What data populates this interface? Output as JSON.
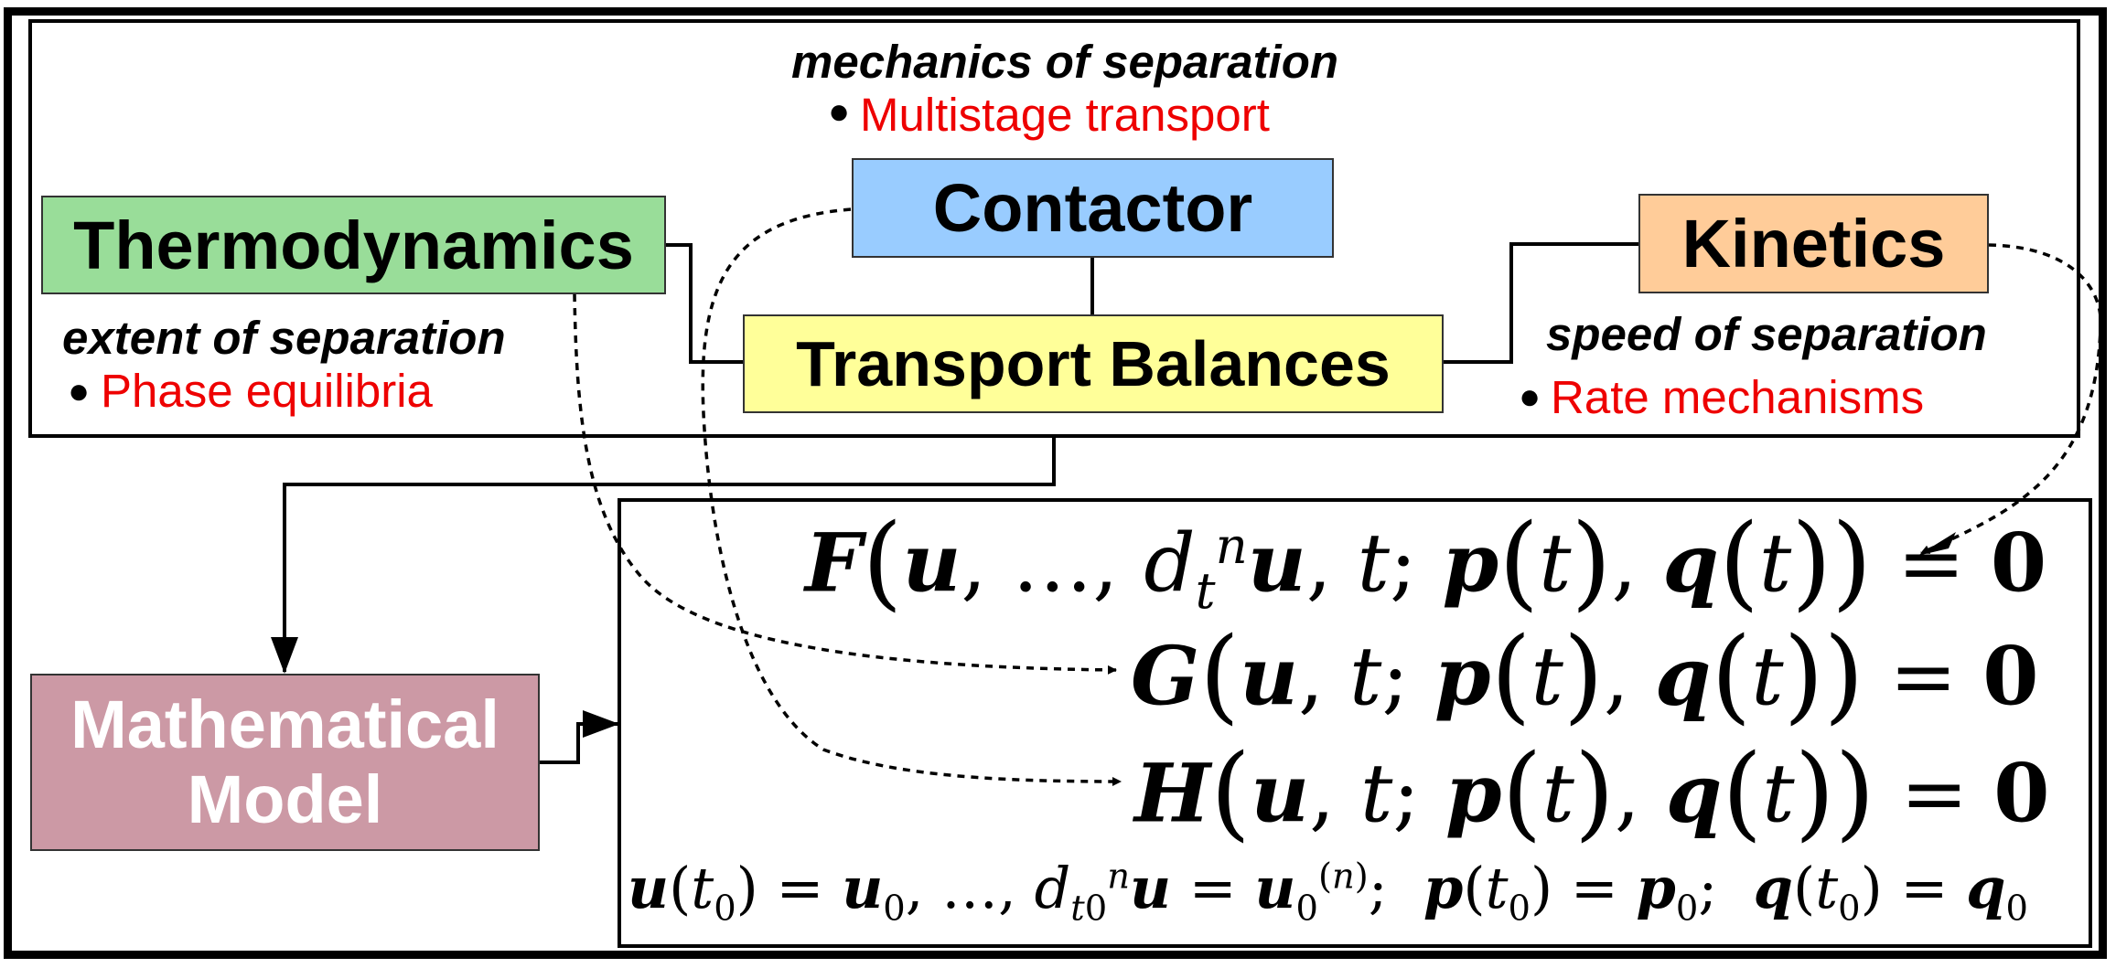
{
  "boxes": {
    "thermodynamics": "Thermodynamics",
    "contactor": "Contactor",
    "transport_balances": "Transport Balances",
    "kinetics": "Kinetics",
    "model_line1": "Mathematical",
    "model_line2": "Model"
  },
  "notes": {
    "contactor_heading": "mechanics of separation",
    "contactor_item": "Multistage transport",
    "thermo_heading": "extent of separation",
    "thermo_item": "Phase equilibria",
    "kinetics_heading": "speed of separation",
    "kinetics_item": "Rate mechanisms"
  },
  "equations": {
    "F_name": "F",
    "G_name": "G",
    "H_name": "H",
    "rhs": "0",
    "init_sep": ";"
  },
  "colors": {
    "thermodynamics": "#99dd99",
    "contactor": "#99ccff",
    "transport": "#ffff99",
    "kinetics": "#ffcc99",
    "model": "#cc99a5",
    "highlight_text": "#ee0000"
  }
}
